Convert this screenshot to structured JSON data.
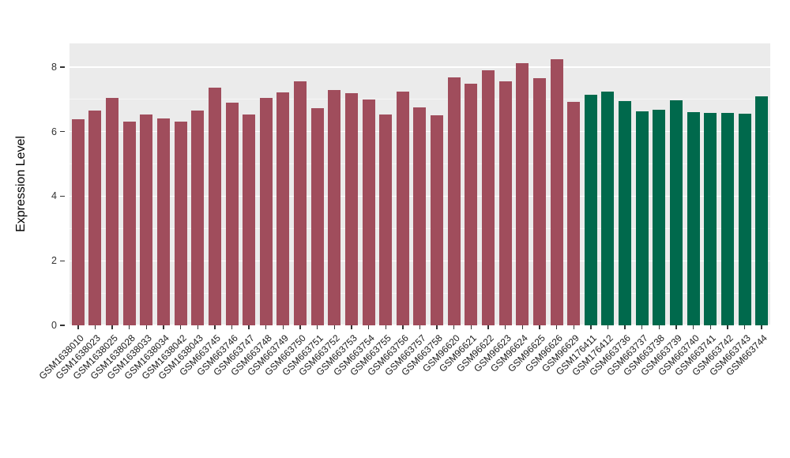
{
  "chart_data": {
    "type": "bar",
    "title": "",
    "xlabel": "",
    "ylabel": "Expression Level",
    "ylim": [
      0,
      8.73
    ],
    "yticks": [
      0,
      2,
      4,
      6,
      8
    ],
    "minor_yticks": [
      1,
      3,
      5,
      7
    ],
    "grid": true,
    "legend_position": "none",
    "categories": [
      "GSM1638010",
      "GSM1638023",
      "GSM1638025",
      "GSM1638028",
      "GSM1638033",
      "GSM1638034",
      "GSM1638042",
      "GSM1638043",
      "GSM663745",
      "GSM663746",
      "GSM663747",
      "GSM663748",
      "GSM663749",
      "GSM663750",
      "GSM663751",
      "GSM663752",
      "GSM663753",
      "GSM663754",
      "GSM663755",
      "GSM663756",
      "GSM663757",
      "GSM663758",
      "GSM96620",
      "GSM96621",
      "GSM96622",
      "GSM96623",
      "GSM96624",
      "GSM96625",
      "GSM96626",
      "GSM96629",
      "GSM176411",
      "GSM176412",
      "GSM663736",
      "GSM663737",
      "GSM663738",
      "GSM663739",
      "GSM663740",
      "GSM663741",
      "GSM663742",
      "GSM663743",
      "GSM663744"
    ],
    "values": [
      6.38,
      6.65,
      7.05,
      6.3,
      6.53,
      6.4,
      6.3,
      6.66,
      7.36,
      6.9,
      6.53,
      7.04,
      7.21,
      7.55,
      6.73,
      7.28,
      7.19,
      7.0,
      6.53,
      7.25,
      6.74,
      6.5,
      7.68,
      7.48,
      7.9,
      7.55,
      8.12,
      7.66,
      8.25,
      6.92,
      7.15,
      7.24,
      6.95,
      6.62,
      6.68,
      6.98,
      6.6,
      6.58,
      6.58,
      6.55,
      7.1
    ],
    "groups": [
      "group1",
      "group1",
      "group1",
      "group1",
      "group1",
      "group1",
      "group1",
      "group1",
      "group1",
      "group1",
      "group1",
      "group1",
      "group1",
      "group1",
      "group1",
      "group1",
      "group1",
      "group1",
      "group1",
      "group1",
      "group1",
      "group1",
      "group1",
      "group1",
      "group1",
      "group1",
      "group1",
      "group1",
      "group1",
      "group1",
      "group2",
      "group2",
      "group2",
      "group2",
      "group2",
      "group2",
      "group2",
      "group2",
      "group2",
      "group2",
      "group2"
    ],
    "group_colors": {
      "group1": "#A04D5C",
      "group2": "#00694C"
    },
    "bar_width_fraction": 0.74
  },
  "style": {
    "plot_background": "#EBEBEB",
    "grid_color": "#FFFFFF",
    "axis_text_color": "#333333",
    "x_label_color": "#1a1a1a"
  }
}
